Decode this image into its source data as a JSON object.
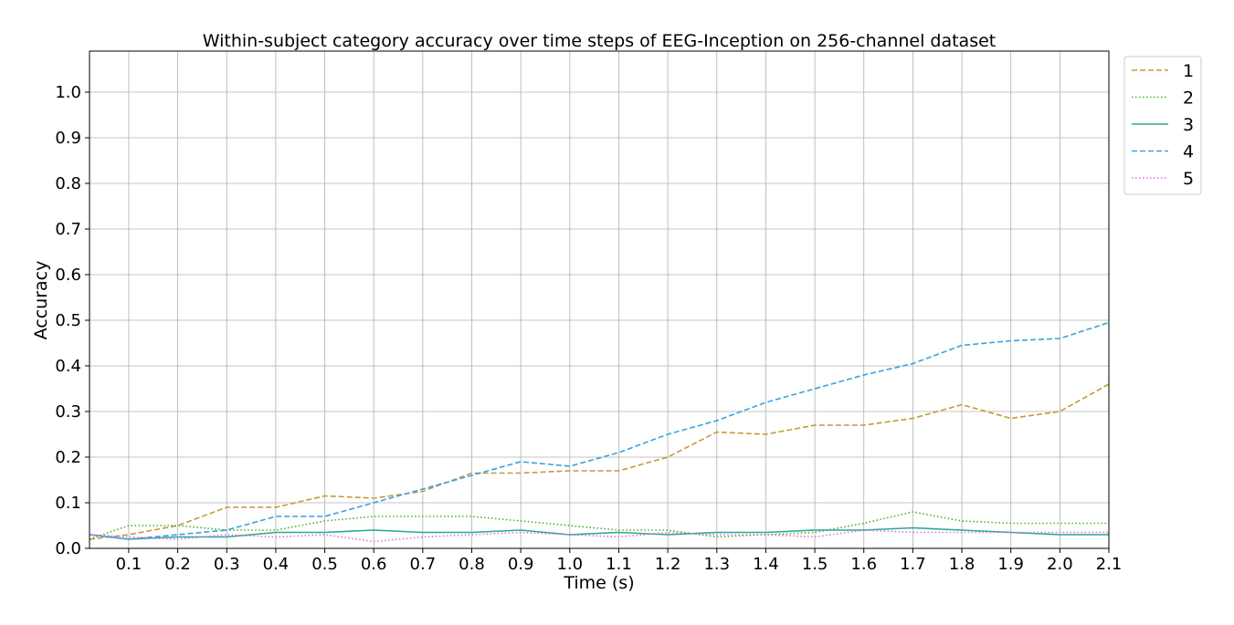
{
  "chart_data": {
    "type": "line",
    "title": "Within-subject category accuracy over time steps of EEG-Inception on 256-channel dataset",
    "xlabel": "Time (s)",
    "ylabel": "Accuracy",
    "xlim": [
      0.02,
      2.1
    ],
    "ylim": [
      0.0,
      1.09
    ],
    "xticks": [
      0.1,
      0.2,
      0.3,
      0.4,
      0.5,
      0.6,
      0.7,
      0.8,
      0.9,
      1.0,
      1.1,
      1.2,
      1.3,
      1.4,
      1.5,
      1.6,
      1.7,
      1.8,
      1.9,
      2.0,
      2.1
    ],
    "xtick_labels": [
      "0.1",
      "0.2",
      "0.3",
      "0.4",
      "0.5",
      "0.6",
      "0.7",
      "0.8",
      "0.9",
      "1.0",
      "1.1",
      "1.2",
      "1.3",
      "1.4",
      "1.5",
      "1.6",
      "1.7",
      "1.8",
      "1.9",
      "2.0",
      "2.1"
    ],
    "yticks": [
      0.0,
      0.1,
      0.2,
      0.3,
      0.4,
      0.5,
      0.6,
      0.7,
      0.8,
      0.9,
      1.0
    ],
    "ytick_labels": [
      "0.0",
      "0.1",
      "0.2",
      "0.3",
      "0.4",
      "0.5",
      "0.6",
      "0.7",
      "0.8",
      "0.9",
      "1.0"
    ],
    "grid": true,
    "legend_position": "outside-top-right",
    "x": [
      0.02,
      0.1,
      0.2,
      0.3,
      0.4,
      0.5,
      0.6,
      0.7,
      0.8,
      0.9,
      1.0,
      1.1,
      1.2,
      1.3,
      1.4,
      1.5,
      1.6,
      1.7,
      1.8,
      1.9,
      2.0,
      2.1
    ],
    "series": [
      {
        "name": "1",
        "color": "#c49a3c",
        "style": "dashed",
        "values": [
          0.02,
          0.03,
          0.05,
          0.09,
          0.09,
          0.115,
          0.11,
          0.125,
          0.165,
          0.165,
          0.17,
          0.17,
          0.2,
          0.255,
          0.25,
          0.27,
          0.27,
          0.285,
          0.315,
          0.285,
          0.3,
          0.36
        ]
      },
      {
        "name": "2",
        "color": "#4caf28",
        "style": "dotted",
        "values": [
          0.02,
          0.05,
          0.05,
          0.04,
          0.04,
          0.06,
          0.07,
          0.07,
          0.07,
          0.06,
          0.05,
          0.04,
          0.04,
          0.025,
          0.03,
          0.035,
          0.055,
          0.08,
          0.06,
          0.055,
          0.055,
          0.055
        ]
      },
      {
        "name": "3",
        "color": "#2aa894",
        "style": "solid",
        "values": [
          0.03,
          0.02,
          0.025,
          0.025,
          0.035,
          0.035,
          0.04,
          0.035,
          0.035,
          0.04,
          0.03,
          0.035,
          0.03,
          0.035,
          0.035,
          0.04,
          0.04,
          0.045,
          0.04,
          0.035,
          0.03,
          0.03
        ]
      },
      {
        "name": "4",
        "color": "#3ca0e0",
        "style": "dashed",
        "values": [
          0.03,
          0.02,
          0.03,
          0.04,
          0.07,
          0.07,
          0.1,
          0.13,
          0.16,
          0.19,
          0.18,
          0.21,
          0.25,
          0.28,
          0.32,
          0.35,
          0.38,
          0.405,
          0.445,
          0.455,
          0.46,
          0.495
        ]
      },
      {
        "name": "5",
        "color": "#e070e0",
        "style": "dotted",
        "values": [
          0.03,
          0.025,
          0.02,
          0.03,
          0.025,
          0.03,
          0.015,
          0.025,
          0.03,
          0.035,
          0.03,
          0.025,
          0.035,
          0.03,
          0.03,
          0.025,
          0.04,
          0.035,
          0.035,
          0.035,
          0.035,
          0.035
        ]
      }
    ]
  }
}
